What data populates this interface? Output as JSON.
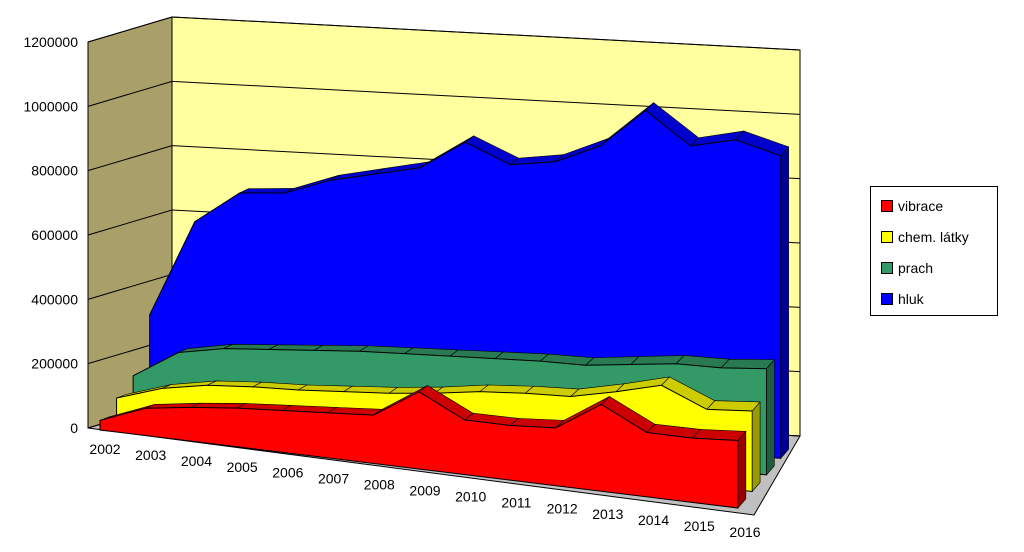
{
  "chart_data": {
    "type": "area",
    "three_d": true,
    "x": [
      "2002",
      "2003",
      "2004",
      "2005",
      "2006",
      "2007",
      "2008",
      "2009",
      "2010",
      "2011",
      "2012",
      "2013",
      "2014",
      "2015",
      "2016"
    ],
    "ylim": [
      0,
      1200000
    ],
    "yticks": [
      "0",
      "200000",
      "400000",
      "600000",
      "800000",
      "1000000",
      "1200000"
    ],
    "grid": true,
    "legend_placement": "right",
    "series": [
      {
        "name": "vibrace",
        "color": "#ff0000",
        "values": [
          30000,
          85000,
          105000,
          120000,
          130000,
          140000,
          150000,
          240000,
          170000,
          170000,
          180000,
          270000,
          200000,
          200000,
          210000
        ]
      },
      {
        "name": "chem. látky",
        "color": "#ffff00",
        "values": [
          80000,
          125000,
          150000,
          160000,
          165000,
          175000,
          185000,
          200000,
          220000,
          230000,
          235000,
          265000,
          300000,
          240000,
          250000
        ]
      },
      {
        "name": "prach",
        "color": "#339966",
        "values": [
          130000,
          215000,
          240000,
          250000,
          260000,
          270000,
          275000,
          280000,
          285000,
          290000,
          290000,
          305000,
          320000,
          320000,
          330000
        ]
      },
      {
        "name": "hluk",
        "color": "#0000ff",
        "values": [
          300000,
          600000,
          700000,
          710000,
          760000,
          790000,
          820000,
          910000,
          850000,
          870000,
          930000,
          1050000,
          950000,
          980000,
          940000
        ]
      }
    ]
  }
}
